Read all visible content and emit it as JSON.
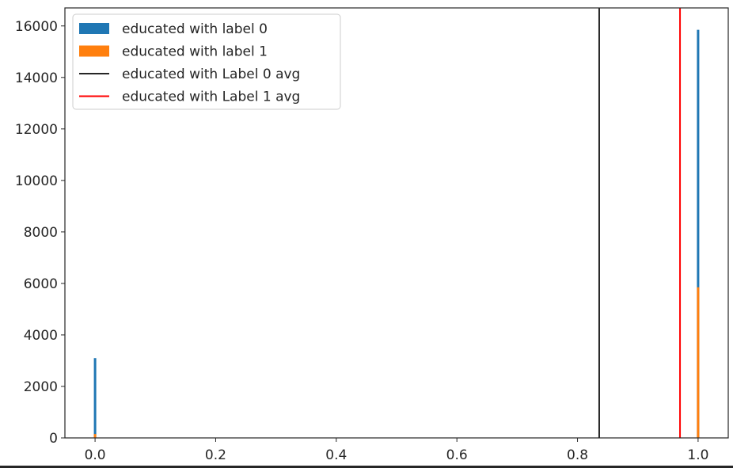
{
  "chart_data": {
    "type": "bar",
    "title": "",
    "xlabel": "",
    "ylabel": "",
    "xlim": [
      -0.05,
      1.05
    ],
    "ylim": [
      0,
      16700
    ],
    "x_ticks": [
      "0.0",
      "0.2",
      "0.4",
      "0.6",
      "0.8",
      "1.0"
    ],
    "x_tick_values": [
      0.0,
      0.2,
      0.4,
      0.6,
      0.8,
      1.0
    ],
    "y_ticks": [
      "0",
      "2000",
      "4000",
      "6000",
      "8000",
      "10000",
      "12000",
      "14000",
      "16000"
    ],
    "y_tick_values": [
      0,
      2000,
      4000,
      6000,
      8000,
      10000,
      12000,
      14000,
      16000
    ],
    "grid": false,
    "legend_position": "top-left",
    "series": [
      {
        "name": "educated with label 0",
        "kind": "histogram",
        "color": "#1f77b4",
        "x": [
          0.0,
          1.0
        ],
        "values": [
          3100,
          15850
        ]
      },
      {
        "name": "educated with label 1",
        "kind": "histogram",
        "color": "#ff7f0e",
        "x": [
          0.0,
          1.0
        ],
        "values": [
          150,
          5850
        ]
      },
      {
        "name": "educated with Label 0 avg",
        "kind": "vline",
        "color": "#262626",
        "x": 0.836
      },
      {
        "name": "educated with Label 1 avg",
        "kind": "vline",
        "color": "#ff0000",
        "x": 0.97
      }
    ]
  }
}
